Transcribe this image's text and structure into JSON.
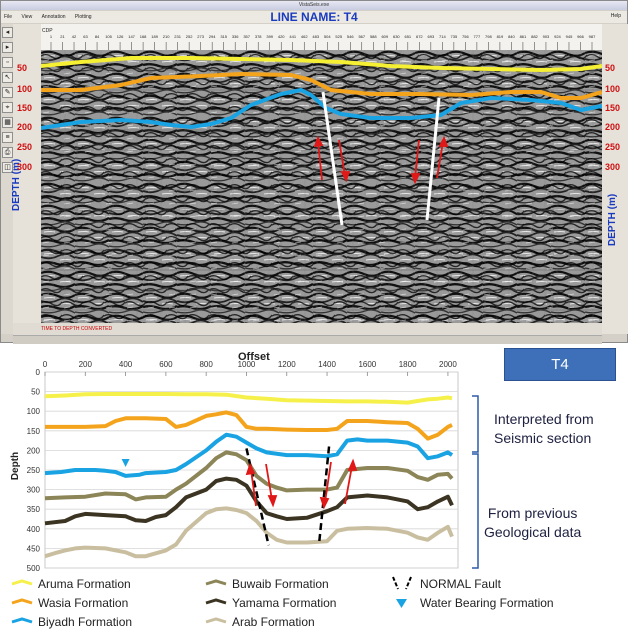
{
  "window": {
    "title_small": "VistaSeis.exe",
    "line_name": "LINE NAME: T4",
    "menu": [
      "File",
      "View",
      "Annotation",
      "Plotting"
    ],
    "help": "Help",
    "toolbar_icons": [
      "pan-icon",
      "zoom-icon",
      "select-icon",
      "pointer-icon",
      "measure-icon",
      "pick-icon",
      "grid-icon",
      "filter-icon",
      "print-icon",
      "layers-icon"
    ],
    "depth_labels_left": [
      "50",
      "100",
      "150",
      "200",
      "250",
      "300"
    ],
    "depth_labels_right": [
      "50",
      "100",
      "150",
      "200",
      "250",
      "300"
    ],
    "depth_axis_label": "DEPTH (m)",
    "depth_axis_label_right": "DEPTH (m)",
    "status_text": "TIME TO DEPTH CONVERTED",
    "cdp_label": "CDP",
    "cdp_ticks": [
      "1",
      "21",
      "42",
      "63",
      "84",
      "105",
      "126",
      "147",
      "168",
      "189",
      "210",
      "231",
      "252",
      "273",
      "294",
      "315",
      "336",
      "357",
      "378",
      "399",
      "420",
      "441",
      "462",
      "483",
      "504",
      "525",
      "546",
      "567",
      "588",
      "609",
      "630",
      "651",
      "672",
      "693",
      "714",
      "735",
      "756",
      "777",
      "798",
      "819",
      "840",
      "861",
      "882",
      "903",
      "924",
      "945",
      "966",
      "987"
    ]
  },
  "t4_box": {
    "label": "T4"
  },
  "chart_data": {
    "type": "line",
    "title": "Offset",
    "xlabel": "Offset",
    "ylabel": "Depth",
    "xlim": [
      0,
      2050
    ],
    "ylim": [
      0,
      500
    ],
    "y_inverted": true,
    "x_ticks": [
      "0",
      "200",
      "400",
      "600",
      "800",
      "1000",
      "1200",
      "1400",
      "1600",
      "1800",
      "2000"
    ],
    "y_ticks": [
      "0",
      "50",
      "100",
      "150",
      "200",
      "250",
      "300",
      "350",
      "400",
      "450",
      "500"
    ],
    "grid": true,
    "series": [
      {
        "name": "Aruma Formation",
        "color": "#f6f04a",
        "x": [
          0,
          100,
          200,
          300,
          400,
          500,
          600,
          700,
          800,
          900,
          1000,
          1100,
          1200,
          1300,
          1400,
          1500,
          1600,
          1700,
          1800,
          1850,
          1900,
          1950,
          2000,
          2020
        ],
        "y": [
          62,
          60,
          57,
          56,
          56,
          56,
          56,
          57,
          57,
          58,
          65,
          68,
          72,
          73,
          74,
          75,
          75,
          76,
          78,
          74,
          70,
          68,
          65,
          67
        ]
      },
      {
        "name": "Wasia Formation",
        "color": "#f4a41c",
        "x": [
          0,
          100,
          200,
          300,
          350,
          400,
          500,
          600,
          650,
          700,
          800,
          850,
          900,
          950,
          1000,
          1050,
          1100,
          1200,
          1300,
          1400,
          1450,
          1500,
          1600,
          1700,
          1800,
          1850,
          1900,
          1950,
          2000,
          2020
        ],
        "y": [
          140,
          140,
          140,
          138,
          125,
          118,
          118,
          120,
          140,
          135,
          112,
          108,
          103,
          110,
          140,
          145,
          145,
          147,
          148,
          148,
          145,
          125,
          125,
          128,
          130,
          145,
          170,
          160,
          140,
          135
        ]
      },
      {
        "name": "Biyadh Formation",
        "color": "#1aa3e3",
        "x": [
          0,
          80,
          150,
          250,
          300,
          350,
          400,
          470,
          500,
          600,
          650,
          700,
          800,
          850,
          900,
          950,
          1000,
          1050,
          1100,
          1200,
          1300,
          1400,
          1450,
          1500,
          1550,
          1600,
          1700,
          1800,
          1850,
          1900,
          1950,
          2000,
          2020
        ],
        "y": [
          258,
          255,
          250,
          250,
          252,
          255,
          265,
          262,
          258,
          255,
          250,
          235,
          200,
          178,
          160,
          165,
          180,
          195,
          205,
          212,
          212,
          215,
          210,
          175,
          172,
          175,
          175,
          180,
          190,
          220,
          215,
          205,
          212
        ]
      },
      {
        "name": "Buwaib Formation",
        "color": "#8c8558",
        "x": [
          0,
          100,
          200,
          300,
          400,
          450,
          500,
          600,
          650,
          700,
          800,
          850,
          900,
          950,
          1000,
          1050,
          1100,
          1150,
          1200,
          1300,
          1400,
          1450,
          1500,
          1600,
          1700,
          1800,
          1850,
          1900,
          1950,
          2000,
          2020
        ],
        "y": [
          322,
          320,
          318,
          310,
          312,
          325,
          320,
          318,
          300,
          285,
          245,
          220,
          205,
          210,
          225,
          265,
          285,
          295,
          302,
          300,
          300,
          295,
          250,
          245,
          245,
          252,
          268,
          275,
          262,
          260,
          272
        ]
      },
      {
        "name": "Yamama Formation",
        "color": "#3c3422",
        "x": [
          0,
          100,
          150,
          200,
          300,
          400,
          450,
          500,
          550,
          600,
          650,
          700,
          800,
          850,
          900,
          950,
          1000,
          1050,
          1100,
          1150,
          1200,
          1300,
          1400,
          1450,
          1500,
          1600,
          1700,
          1800,
          1850,
          1900,
          1950,
          2000,
          2020
        ],
        "y": [
          386,
          380,
          368,
          362,
          365,
          368,
          378,
          380,
          370,
          365,
          345,
          320,
          300,
          278,
          272,
          275,
          290,
          330,
          360,
          368,
          375,
          372,
          355,
          345,
          320,
          315,
          320,
          330,
          350,
          345,
          330,
          318,
          340
        ]
      },
      {
        "name": "Arab Formation",
        "color": "#c9bfa0",
        "x": [
          0,
          50,
          100,
          150,
          200,
          300,
          400,
          450,
          500,
          600,
          650,
          700,
          800,
          850,
          900,
          950,
          1000,
          1050,
          1100,
          1150,
          1200,
          1300,
          1400,
          1450,
          1500,
          1600,
          1700,
          1800,
          1850,
          1900,
          1950,
          2000,
          2020
        ],
        "y": [
          470,
          462,
          455,
          450,
          448,
          450,
          460,
          470,
          470,
          455,
          440,
          405,
          360,
          350,
          348,
          352,
          360,
          380,
          410,
          428,
          435,
          435,
          432,
          405,
          400,
          398,
          400,
          410,
          422,
          428,
          410,
          395,
          420
        ]
      }
    ],
    "faults": [
      {
        "x": [
          1000,
          1110
        ],
        "y": [
          195,
          442
        ]
      },
      {
        "x": [
          1410,
          1360
        ],
        "y": [
          190,
          440
        ]
      }
    ],
    "water_bearing": {
      "x": 400,
      "y": 232
    }
  },
  "annotations": {
    "interpreted": [
      "Interpreted from",
      "Seismic section"
    ],
    "previous": [
      "From previous",
      "Geological data"
    ]
  },
  "legend": [
    {
      "label": "Aruma Formation",
      "color": "#f6f04a",
      "kind": "line"
    },
    {
      "label": "Wasia  Formation",
      "color": "#f4a41c",
      "kind": "line"
    },
    {
      "label": "Biyadh Formation",
      "color": "#1aa3e3",
      "kind": "line"
    },
    {
      "label": "Buwaib Formation",
      "color": "#8c8558",
      "kind": "line"
    },
    {
      "label": "Yamama Formation",
      "color": "#3c3422",
      "kind": "line"
    },
    {
      "label": "Arab Formation",
      "color": "#c9bfa0",
      "kind": "line"
    },
    {
      "label": "NORMAL Fault",
      "color": "#000000",
      "kind": "fault"
    },
    {
      "label": "Water Bearing Formation",
      "color": "#1aa3e3",
      "kind": "triangle"
    }
  ]
}
